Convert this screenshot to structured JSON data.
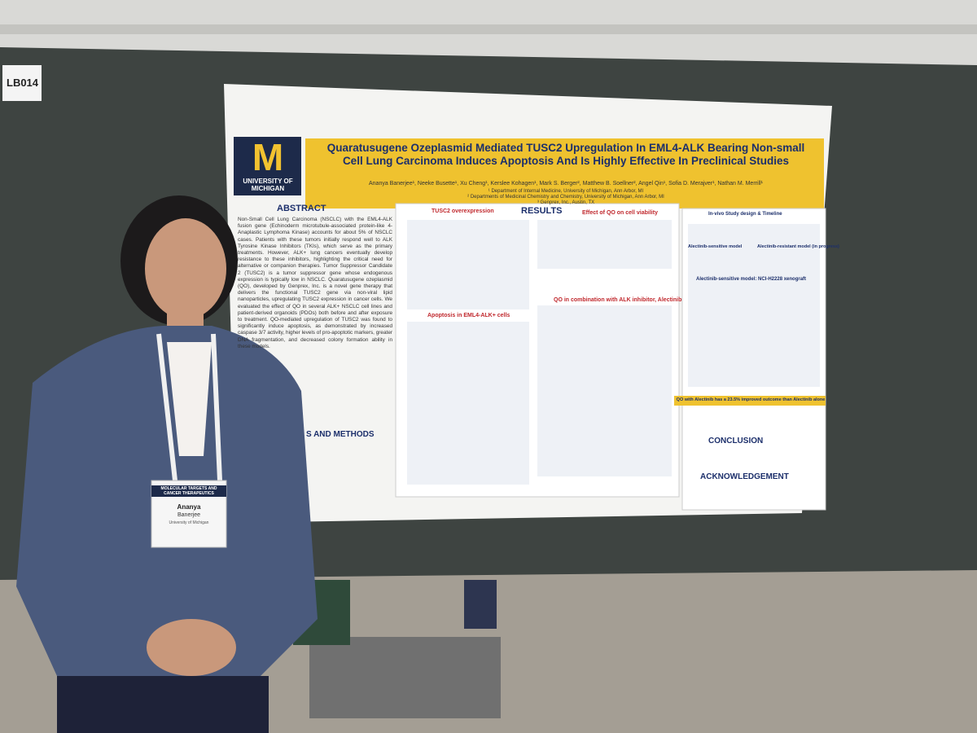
{
  "board_label": "LB014",
  "poster": {
    "logo": {
      "letter": "M",
      "name": "UNIVERSITY OF MICHIGAN"
    },
    "title": "Quaratusugene Ozeplasmid Mediated TUSC2 Upregulation In EML4-ALK Bearing Non-small Cell Lung Carcinoma Induces Apoptosis And Is Highly Effective In Preclinical Studies",
    "authors": "Ananya Banerjee¹, Neeke Busette¹, Xu Cheng¹, Kerslee Kohagen¹, Mark S. Berger², Matthew B. Soellner², Angel Qin¹, Sofia D. Merajver¹, Nathan M. Merrill¹",
    "affiliations": [
      "¹ Department of Internal Medicine, University of Michigan, Ann Arbor, MI",
      "² Departments of Medicinal Chemistry and Chemistry, University of Michigan, Ann Arbor, MI",
      "³ Genprex, Inc., Austin, TX"
    ],
    "abstract_heading": "ABSTRACT",
    "abstract": "Non-Small Cell Lung Carcinoma (NSCLC) with the EML4-ALK fusion gene (Echinoderm microtubule-associated protein-like 4-Anaplastic Lymphoma Kinase) accounts for about 5% of NSCLC cases. Patients with these tumors initially respond well to ALK Tyrosine Kinase Inhibitors (TKIs), which serve as the primary treatments. However, ALK+ lung cancers eventually develop resistance to these inhibitors, highlighting the critical need for alternative or companion therapies. Tumor Suppressor Candidate 2 (TUSC2) is a tumor suppressor gene whose endogenous expression is typically low in NSCLC. Quaratusugene ozeplasmid (QO), developed by Genprex, Inc. is a novel gene therapy that delivers the functional TUSC2 gene via non-viral lipid nanoparticles, upregulating TUSC2 expression in cancer cells. We evaluated the effect of QO in several ALK+ NSCLC cell lines and patient-derived organoids (PDOs) both before and after exposure to treatment. QO-mediated upregulation of TUSC2 was found to significantly induce apoptosis, as demonstrated by increased caspase 3/7 activity, higher levels of pro-apoptotic markers, greater DNA fragmentation, and decreased colony formation ability in these models.",
    "methods_heading": "S AND METHODS",
    "results_heading": "RESULTS",
    "panels": [
      "TUSC2 overexpression",
      "Effect of QO on cell viability",
      "Apoptosis in EML4-ALK+ cells",
      "QO in combination with ALK inhibitor, Alectinib",
      "In-vivo Study design & Timeline",
      "Alectinib-sensitive model",
      "Alectinib-resistant model (in progress)",
      "Alectinib-sensitive model: NCI-H2228 xenograft"
    ],
    "highlight": "QO with Alectinib has a 23.5% improved outcome than Alectinib alone",
    "conclusion_heading": "CONCLUSION",
    "acknowledgement_heading": "ACKNOWLEDGEMENT"
  },
  "badge": {
    "event": "MOLECULAR TARGETS AND CANCER THERAPEUTICS",
    "first_name": "Ananya",
    "last_name": "Banerjee",
    "affiliation": "University of Michigan"
  }
}
